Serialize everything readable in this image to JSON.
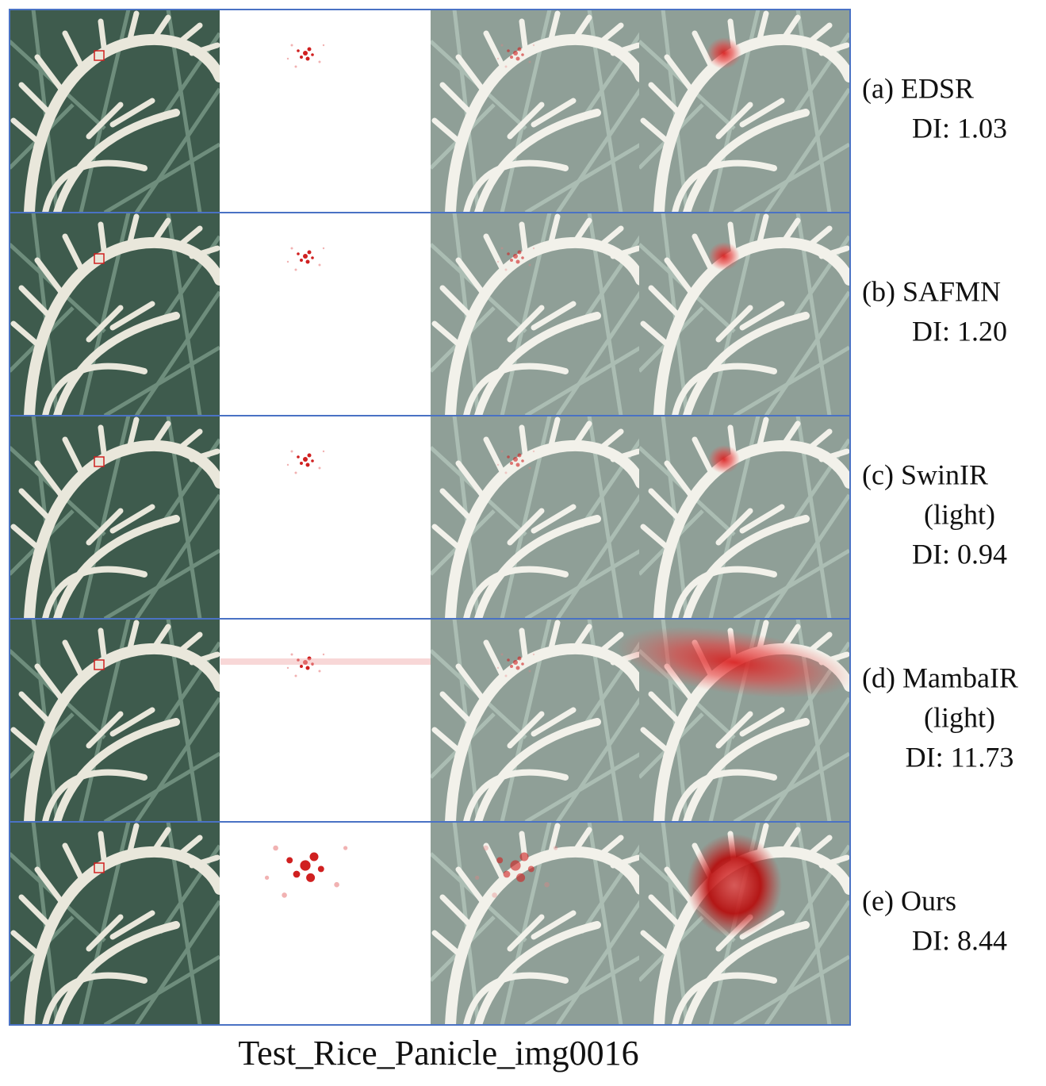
{
  "rows": [
    {
      "lines": [
        "(a) EDSR",
        "DI: 1.03"
      ]
    },
    {
      "lines": [
        "(b) SAFMN",
        "DI: 1.20"
      ]
    },
    {
      "lines": [
        "(c) SwinIR",
        "(light)",
        "DI: 0.94"
      ]
    },
    {
      "lines": [
        "(d) MambaIR",
        "(light)",
        "DI: 11.73"
      ]
    },
    {
      "lines": [
        "(e) Ours",
        "DI: 8.44"
      ]
    }
  ],
  "caption": "Test_Rice_Panicle_img0016"
}
